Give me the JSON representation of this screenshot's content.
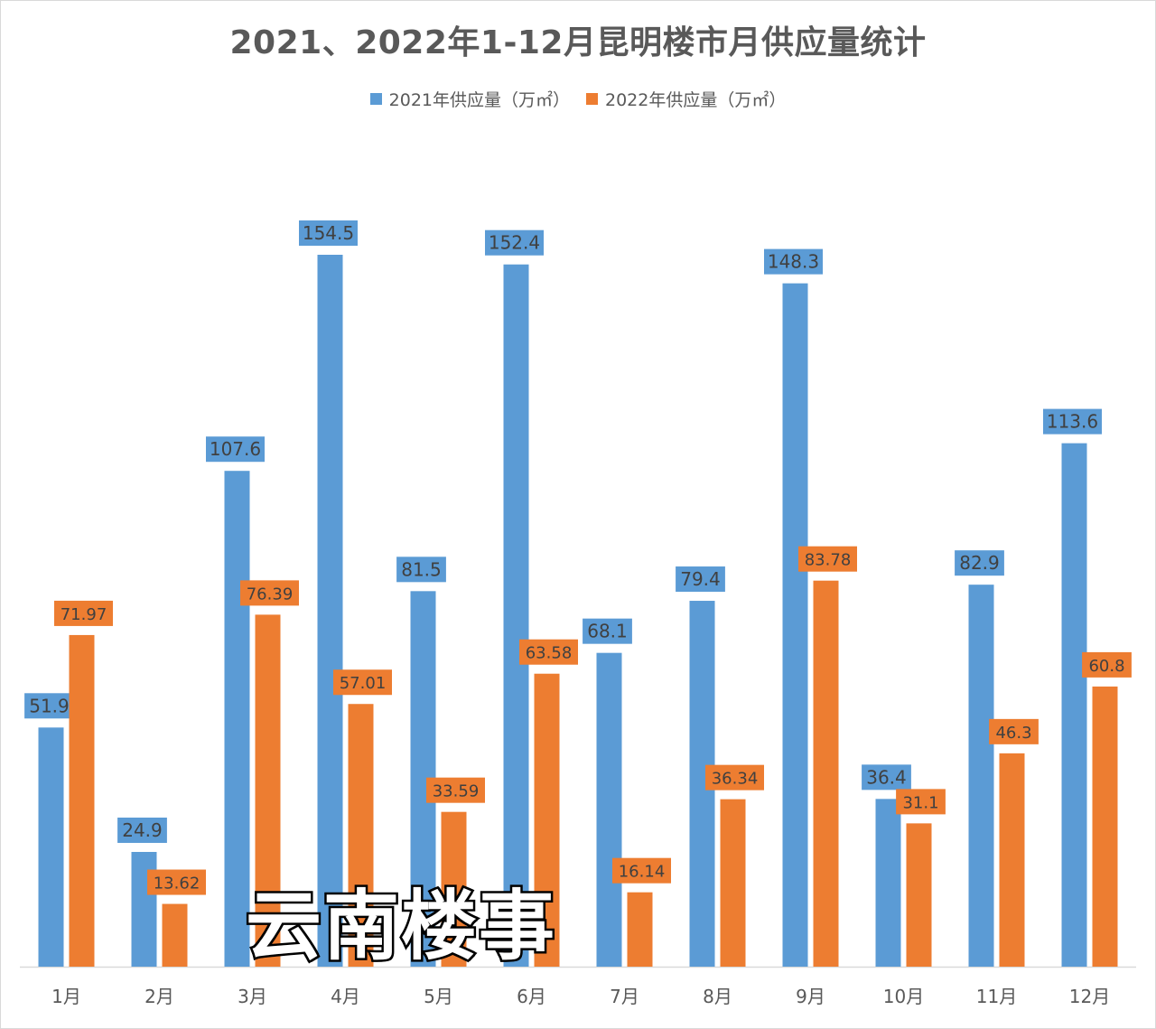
{
  "title": "2021、2022年1-12月昆明楼市月供应量统计",
  "legend": {
    "series1": "2021年供应量（万㎡）",
    "series2": "2022年供应量（万㎡）"
  },
  "watermark": "云南楼事",
  "colors": {
    "series1": "#5B9BD5",
    "series2": "#ED7D31",
    "axis": "#D9D9D9",
    "text": "#595959"
  },
  "chart_data": {
    "type": "bar",
    "categories": [
      "1月",
      "2月",
      "3月",
      "4月",
      "5月",
      "6月",
      "7月",
      "8月",
      "9月",
      "10月",
      "11月",
      "12月"
    ],
    "series": [
      {
        "name": "2021年供应量（万㎡）",
        "values": [
          51.9,
          24.9,
          107.6,
          154.5,
          81.5,
          152.4,
          68.1,
          79.4,
          148.3,
          36.4,
          82.9,
          113.6
        ],
        "labels": [
          "51.9",
          "24.9",
          "107.6",
          "154.5",
          "81.5",
          "152.4",
          "68.1",
          "79.4",
          "148.3",
          "36.4",
          "82.9",
          "113.6"
        ]
      },
      {
        "name": "2022年供应量（万㎡）",
        "values": [
          71.97,
          13.62,
          76.39,
          57.01,
          33.59,
          63.58,
          16.14,
          36.34,
          83.78,
          31.1,
          46.3,
          60.8
        ],
        "labels": [
          "71.97",
          "13.62",
          "76.39",
          "57.01",
          "33.59",
          "63.58",
          "16.14",
          "36.34",
          "83.78",
          "31.1",
          "46.3",
          "60.8"
        ]
      }
    ],
    "ylim": [
      0,
      154.5
    ],
    "grid": false,
    "legend_position": "top-center",
    "data_labels": true
  }
}
